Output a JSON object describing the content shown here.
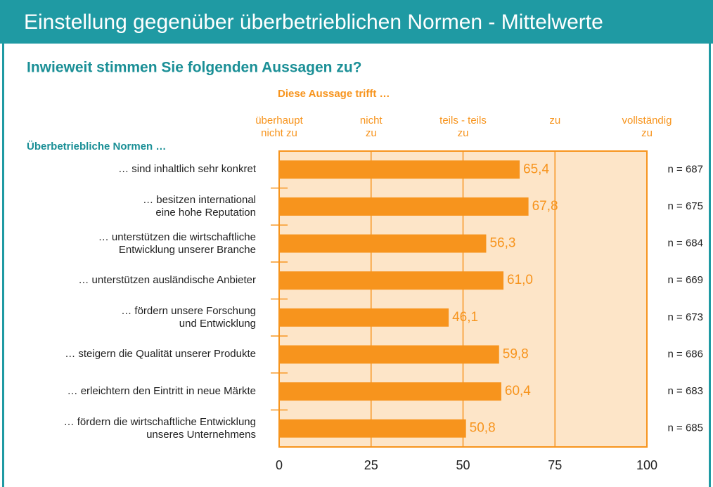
{
  "chart_data": {
    "type": "barh",
    "title": "Einstellung gegenüber überbetrieblichen Normen - Mittelwerte",
    "subtitle": "Inwieweit stimmen Sie folgenden Aussagen zu?",
    "scale_title": "Diese Aussage trifft …",
    "scale_labels": [
      "überhaupt\nnicht zu",
      "nicht\nzu",
      "teils - teils\nzu",
      "zu",
      "vollständig\nzu"
    ],
    "category_title": "Überbetriebliche Normen …",
    "categories": [
      "… sind inhaltlich sehr konkret",
      "… besitzen international\neine hohe Reputation",
      "… unterstützen die wirtschaftliche\nEntwicklung unserer Branche",
      "… unterstützen ausländische Anbieter",
      "… fördern unsere Forschung\nund Entwicklung",
      "… steigern die Qualität unserer Produkte",
      "… erleichtern den Eintritt in neue Märkte",
      "… fördern die wirtschaftliche Entwicklung\nunseres Unternehmens"
    ],
    "values": [
      65.4,
      67.8,
      56.3,
      61.0,
      46.1,
      59.8,
      60.4,
      50.8
    ],
    "value_labels": [
      "65,4",
      "67,8",
      "56,3",
      "61,0",
      "46,1",
      "59,8",
      "60,4",
      "50,8"
    ],
    "n_labels": [
      "n = 687",
      "n = 675",
      "n = 684",
      "n = 669",
      "n = 673",
      "n = 686",
      "n = 683",
      "n = 685"
    ],
    "color": "#f7941d",
    "xlim": [
      0,
      100
    ],
    "xticks": [
      0,
      25,
      50,
      75,
      100
    ],
    "grid": true
  }
}
